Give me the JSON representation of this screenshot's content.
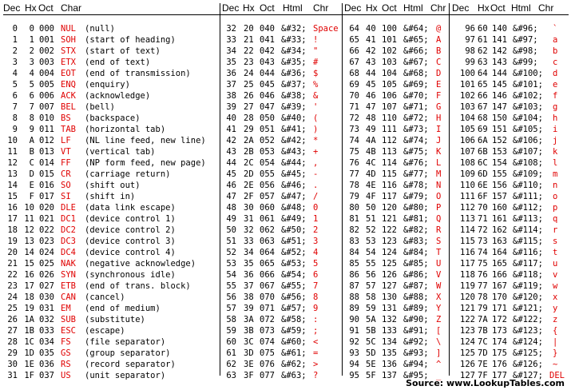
{
  "headers": [
    [
      "Dec",
      "Hx",
      "Oct",
      "Char"
    ],
    [
      "Dec",
      "Hx",
      "Oct",
      "Html",
      "Chr"
    ],
    [
      "Dec",
      "Hx",
      "Oct",
      "Html",
      "Chr"
    ],
    [
      "Dec",
      "Hx",
      "Oct",
      "Html",
      "Chr"
    ]
  ],
  "accent_color": "#e00000",
  "control": [
    [
      "0",
      "0",
      "000",
      "NUL",
      "(null)"
    ],
    [
      "1",
      "1",
      "001",
      "SOH",
      "(start of heading)"
    ],
    [
      "2",
      "2",
      "002",
      "STX",
      "(start of text)"
    ],
    [
      "3",
      "3",
      "003",
      "ETX",
      "(end of text)"
    ],
    [
      "4",
      "4",
      "004",
      "EOT",
      "(end of transmission)"
    ],
    [
      "5",
      "5",
      "005",
      "ENQ",
      "(enquiry)"
    ],
    [
      "6",
      "6",
      "006",
      "ACK",
      "(acknowledge)"
    ],
    [
      "7",
      "7",
      "007",
      "BEL",
      "(bell)"
    ],
    [
      "8",
      "8",
      "010",
      "BS",
      "(backspace)"
    ],
    [
      "9",
      "9",
      "011",
      "TAB",
      "(horizontal tab)"
    ],
    [
      "10",
      "A",
      "012",
      "LF",
      "(NL line feed, new line)"
    ],
    [
      "11",
      "B",
      "013",
      "VT",
      "(vertical tab)"
    ],
    [
      "12",
      "C",
      "014",
      "FF",
      "(NP form feed, new page)"
    ],
    [
      "13",
      "D",
      "015",
      "CR",
      "(carriage return)"
    ],
    [
      "14",
      "E",
      "016",
      "SO",
      "(shift out)"
    ],
    [
      "15",
      "F",
      "017",
      "SI",
      "(shift in)"
    ],
    [
      "16",
      "10",
      "020",
      "DLE",
      "(data link escape)"
    ],
    [
      "17",
      "11",
      "021",
      "DC1",
      "(device control 1)"
    ],
    [
      "18",
      "12",
      "022",
      "DC2",
      "(device control 2)"
    ],
    [
      "19",
      "13",
      "023",
      "DC3",
      "(device control 3)"
    ],
    [
      "20",
      "14",
      "024",
      "DC4",
      "(device control 4)"
    ],
    [
      "21",
      "15",
      "025",
      "NAK",
      "(negative acknowledge)"
    ],
    [
      "22",
      "16",
      "026",
      "SYN",
      "(synchronous idle)"
    ],
    [
      "23",
      "17",
      "027",
      "ETB",
      "(end of trans. block)"
    ],
    [
      "24",
      "18",
      "030",
      "CAN",
      "(cancel)"
    ],
    [
      "25",
      "19",
      "031",
      "EM",
      "(end of medium)"
    ],
    [
      "26",
      "1A",
      "032",
      "SUB",
      "(substitute)"
    ],
    [
      "27",
      "1B",
      "033",
      "ESC",
      "(escape)"
    ],
    [
      "28",
      "1C",
      "034",
      "FS",
      "(file separator)"
    ],
    [
      "29",
      "1D",
      "035",
      "GS",
      "(group separator)"
    ],
    [
      "30",
      "1E",
      "036",
      "RS",
      "(record separator)"
    ],
    [
      "31",
      "1F",
      "037",
      "US",
      "(unit separator)"
    ]
  ],
  "printable": [
    [
      [
        "32",
        "20",
        "040",
        "&#32;",
        "Space"
      ],
      [
        "33",
        "21",
        "041",
        "&#33;",
        "!"
      ],
      [
        "34",
        "22",
        "042",
        "&#34;",
        "\""
      ],
      [
        "35",
        "23",
        "043",
        "&#35;",
        "#"
      ],
      [
        "36",
        "24",
        "044",
        "&#36;",
        "$"
      ],
      [
        "37",
        "25",
        "045",
        "&#37;",
        "%"
      ],
      [
        "38",
        "26",
        "046",
        "&#38;",
        "&"
      ],
      [
        "39",
        "27",
        "047",
        "&#39;",
        "'"
      ],
      [
        "40",
        "28",
        "050",
        "&#40;",
        "("
      ],
      [
        "41",
        "29",
        "051",
        "&#41;",
        ")"
      ],
      [
        "42",
        "2A",
        "052",
        "&#42;",
        "*"
      ],
      [
        "43",
        "2B",
        "053",
        "&#43;",
        "+"
      ],
      [
        "44",
        "2C",
        "054",
        "&#44;",
        ","
      ],
      [
        "45",
        "2D",
        "055",
        "&#45;",
        "-"
      ],
      [
        "46",
        "2E",
        "056",
        "&#46;",
        "."
      ],
      [
        "47",
        "2F",
        "057",
        "&#47;",
        "/"
      ],
      [
        "48",
        "30",
        "060",
        "&#48;",
        "0"
      ],
      [
        "49",
        "31",
        "061",
        "&#49;",
        "1"
      ],
      [
        "50",
        "32",
        "062",
        "&#50;",
        "2"
      ],
      [
        "51",
        "33",
        "063",
        "&#51;",
        "3"
      ],
      [
        "52",
        "34",
        "064",
        "&#52;",
        "4"
      ],
      [
        "53",
        "35",
        "065",
        "&#53;",
        "5"
      ],
      [
        "54",
        "36",
        "066",
        "&#54;",
        "6"
      ],
      [
        "55",
        "37",
        "067",
        "&#55;",
        "7"
      ],
      [
        "56",
        "38",
        "070",
        "&#56;",
        "8"
      ],
      [
        "57",
        "39",
        "071",
        "&#57;",
        "9"
      ],
      [
        "58",
        "3A",
        "072",
        "&#58;",
        ":"
      ],
      [
        "59",
        "3B",
        "073",
        "&#59;",
        ";"
      ],
      [
        "60",
        "3C",
        "074",
        "&#60;",
        "<"
      ],
      [
        "61",
        "3D",
        "075",
        "&#61;",
        "="
      ],
      [
        "62",
        "3E",
        "076",
        "&#62;",
        ">"
      ],
      [
        "63",
        "3F",
        "077",
        "&#63;",
        "?"
      ]
    ],
    [
      [
        "64",
        "40",
        "100",
        "&#64;",
        "@"
      ],
      [
        "65",
        "41",
        "101",
        "&#65;",
        "A"
      ],
      [
        "66",
        "42",
        "102",
        "&#66;",
        "B"
      ],
      [
        "67",
        "43",
        "103",
        "&#67;",
        "C"
      ],
      [
        "68",
        "44",
        "104",
        "&#68;",
        "D"
      ],
      [
        "69",
        "45",
        "105",
        "&#69;",
        "E"
      ],
      [
        "70",
        "46",
        "106",
        "&#70;",
        "F"
      ],
      [
        "71",
        "47",
        "107",
        "&#71;",
        "G"
      ],
      [
        "72",
        "48",
        "110",
        "&#72;",
        "H"
      ],
      [
        "73",
        "49",
        "111",
        "&#73;",
        "I"
      ],
      [
        "74",
        "4A",
        "112",
        "&#74;",
        "J"
      ],
      [
        "75",
        "4B",
        "113",
        "&#75;",
        "K"
      ],
      [
        "76",
        "4C",
        "114",
        "&#76;",
        "L"
      ],
      [
        "77",
        "4D",
        "115",
        "&#77;",
        "M"
      ],
      [
        "78",
        "4E",
        "116",
        "&#78;",
        "N"
      ],
      [
        "79",
        "4F",
        "117",
        "&#79;",
        "O"
      ],
      [
        "80",
        "50",
        "120",
        "&#80;",
        "P"
      ],
      [
        "81",
        "51",
        "121",
        "&#81;",
        "Q"
      ],
      [
        "82",
        "52",
        "122",
        "&#82;",
        "R"
      ],
      [
        "83",
        "53",
        "123",
        "&#83;",
        "S"
      ],
      [
        "84",
        "54",
        "124",
        "&#84;",
        "T"
      ],
      [
        "85",
        "55",
        "125",
        "&#85;",
        "U"
      ],
      [
        "86",
        "56",
        "126",
        "&#86;",
        "V"
      ],
      [
        "87",
        "57",
        "127",
        "&#87;",
        "W"
      ],
      [
        "88",
        "58",
        "130",
        "&#88;",
        "X"
      ],
      [
        "89",
        "59",
        "131",
        "&#89;",
        "Y"
      ],
      [
        "90",
        "5A",
        "132",
        "&#90;",
        "Z"
      ],
      [
        "91",
        "5B",
        "133",
        "&#91;",
        "["
      ],
      [
        "92",
        "5C",
        "134",
        "&#92;",
        "\\"
      ],
      [
        "93",
        "5D",
        "135",
        "&#93;",
        "]"
      ],
      [
        "94",
        "5E",
        "136",
        "&#94;",
        "^"
      ],
      [
        "95",
        "5F",
        "137",
        "&#95;",
        "_"
      ]
    ],
    [
      [
        "96",
        "60",
        "140",
        "&#96;",
        "`"
      ],
      [
        "97",
        "61",
        "141",
        "&#97;",
        "a"
      ],
      [
        "98",
        "62",
        "142",
        "&#98;",
        "b"
      ],
      [
        "99",
        "63",
        "143",
        "&#99;",
        "c"
      ],
      [
        "100",
        "64",
        "144",
        "&#100;",
        "d"
      ],
      [
        "101",
        "65",
        "145",
        "&#101;",
        "e"
      ],
      [
        "102",
        "66",
        "146",
        "&#102;",
        "f"
      ],
      [
        "103",
        "67",
        "147",
        "&#103;",
        "g"
      ],
      [
        "104",
        "68",
        "150",
        "&#104;",
        "h"
      ],
      [
        "105",
        "69",
        "151",
        "&#105;",
        "i"
      ],
      [
        "106",
        "6A",
        "152",
        "&#106;",
        "j"
      ],
      [
        "107",
        "6B",
        "153",
        "&#107;",
        "k"
      ],
      [
        "108",
        "6C",
        "154",
        "&#108;",
        "l"
      ],
      [
        "109",
        "6D",
        "155",
        "&#109;",
        "m"
      ],
      [
        "110",
        "6E",
        "156",
        "&#110;",
        "n"
      ],
      [
        "111",
        "6F",
        "157",
        "&#111;",
        "o"
      ],
      [
        "112",
        "70",
        "160",
        "&#112;",
        "p"
      ],
      [
        "113",
        "71",
        "161",
        "&#113;",
        "q"
      ],
      [
        "114",
        "72",
        "162",
        "&#114;",
        "r"
      ],
      [
        "115",
        "73",
        "163",
        "&#115;",
        "s"
      ],
      [
        "116",
        "74",
        "164",
        "&#116;",
        "t"
      ],
      [
        "117",
        "75",
        "165",
        "&#117;",
        "u"
      ],
      [
        "118",
        "76",
        "166",
        "&#118;",
        "v"
      ],
      [
        "119",
        "77",
        "167",
        "&#119;",
        "w"
      ],
      [
        "120",
        "78",
        "170",
        "&#120;",
        "x"
      ],
      [
        "121",
        "79",
        "171",
        "&#121;",
        "y"
      ],
      [
        "122",
        "7A",
        "172",
        "&#122;",
        "z"
      ],
      [
        "123",
        "7B",
        "173",
        "&#123;",
        "{"
      ],
      [
        "124",
        "7C",
        "174",
        "&#124;",
        "|"
      ],
      [
        "125",
        "7D",
        "175",
        "&#125;",
        "}"
      ],
      [
        "126",
        "7E",
        "176",
        "&#126;",
        "~"
      ],
      [
        "127",
        "7F",
        "177",
        "&#127;",
        "DEL"
      ]
    ]
  ],
  "source": "Source:  www.LookupTables.com"
}
